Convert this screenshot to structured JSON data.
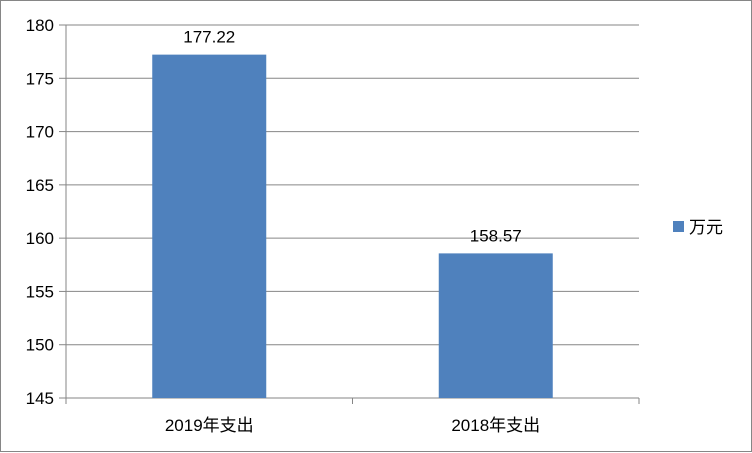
{
  "chart_data": {
    "type": "bar",
    "categories": [
      "2019年支出",
      "2018年支出"
    ],
    "series": [
      {
        "name": "万元",
        "values": [
          177.22,
          158.57
        ],
        "color": "#4F81BD"
      }
    ],
    "data_labels": [
      "177.22",
      "158.57"
    ],
    "ylim": [
      145,
      180
    ],
    "yticks": [
      145,
      150,
      155,
      160,
      165,
      170,
      175,
      180
    ],
    "grid": true,
    "legend": "right",
    "title": "",
    "xlabel": "",
    "ylabel": ""
  }
}
